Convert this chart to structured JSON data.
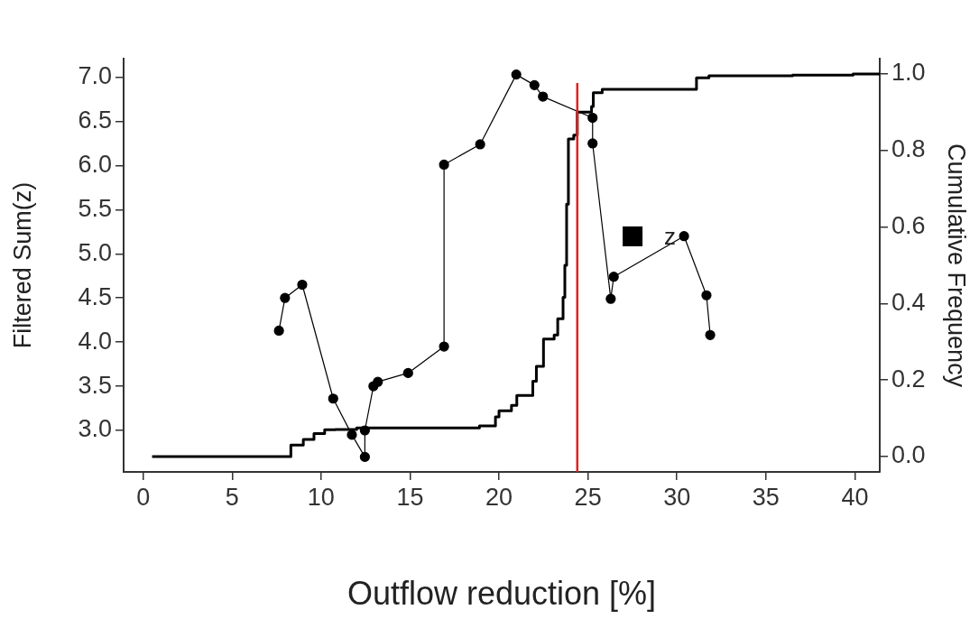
{
  "chart_data": {
    "type": "line",
    "xlabel": "Outflow reduction [%]",
    "ylabel": "Filtered Sum(z)",
    "y2label": "Cumulative Frequency",
    "xlim": [
      -1.1,
      41.4
    ],
    "xticks": [
      0,
      5,
      10,
      15,
      20,
      25,
      30,
      35,
      40
    ],
    "ylim": [
      2.53,
      7.21
    ],
    "yticks": [
      {
        "value": 3,
        "label": "3.0"
      },
      3.5,
      {
        "value": 4,
        "label": "4.0"
      },
      4.5,
      {
        "value": 5,
        "label": "5.0"
      },
      5.5,
      {
        "value": 6,
        "label": "6.0"
      },
      6.5,
      {
        "value": 7,
        "label": "7.0"
      }
    ],
    "y2lim": [
      -0.04,
      1.04
    ],
    "y2ticks": [
      {
        "value": 0,
        "label": "0.0"
      },
      0.2,
      0.4,
      0.6,
      0.8,
      {
        "value": 1,
        "label": "1.0"
      }
    ],
    "grid": false,
    "legend": "right",
    "line_style": "solid",
    "series": [
      {
        "name": "z",
        "marker": "circle",
        "color": "#000000",
        "x": [
          7.63,
          7.97,
          8.94,
          10.68,
          11.73,
          12.46,
          12.46,
          12.94,
          13.19,
          14.89,
          16.91,
          16.91,
          18.94,
          20.97,
          21.99,
          22.47,
          25.26,
          25.26,
          26.28,
          26.45,
          30.4,
          31.66,
          31.87
        ],
        "values": [
          4.13,
          4.5,
          4.65,
          3.36,
          2.95,
          2.7,
          3.0,
          3.5,
          3.55,
          3.65,
          3.95,
          6.01,
          6.24,
          7.03,
          6.91,
          6.78,
          6.54,
          6.25,
          4.49,
          4.74,
          5.2,
          4.53,
          4.08
        ]
      },
      {
        "type": "step",
        "axis": "y2",
        "marker": "none",
        "color": "#000000",
        "x": [
          0.5,
          8.0,
          8.3,
          9.0,
          9.6,
          10.2,
          10.8,
          12.0,
          17.9,
          18.9,
          19.8,
          20.0,
          20.7,
          21.0,
          21.9,
          22.1,
          22.5,
          23.1,
          23.3,
          23.6,
          23.7,
          23.8,
          23.9,
          24.2,
          24.4,
          25.2,
          25.3,
          25.8,
          30.4,
          31.1,
          31.8,
          36.5,
          39.9,
          41.4
        ],
        "values": [
          0.0,
          0.0,
          0.03,
          0.045,
          0.06,
          0.07,
          0.071,
          0.075,
          0.075,
          0.08,
          0.104,
          0.12,
          0.134,
          0.16,
          0.197,
          0.236,
          0.307,
          0.318,
          0.36,
          0.416,
          0.5,
          0.66,
          0.83,
          0.84,
          0.9,
          0.915,
          0.951,
          0.96,
          0.96,
          0.99,
          0.995,
          0.997,
          1.0,
          1.0
        ]
      }
    ],
    "ref_lines": [
      {
        "axis": "x",
        "value": 24.4,
        "color": "#e02020"
      }
    ]
  }
}
